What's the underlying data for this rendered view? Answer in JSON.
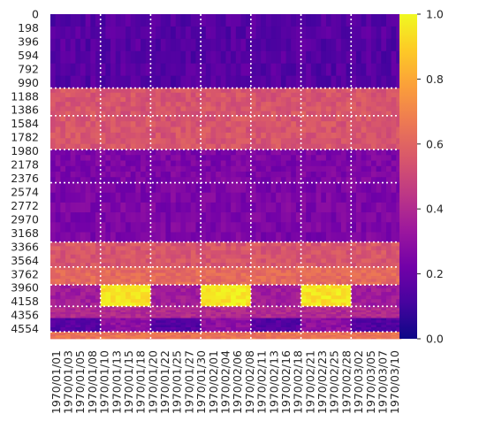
{
  "chart_data": {
    "type": "heatmap",
    "title": "",
    "xlabel": "",
    "ylabel": "",
    "x_tick_labels": [
      "1970/01/01",
      "1970/01/03",
      "1970/01/05",
      "1970/01/08",
      "1970/01/10",
      "1970/01/13",
      "1970/01/15",
      "1970/01/18",
      "1970/01/20",
      "1970/01/22",
      "1970/01/25",
      "1970/01/27",
      "1970/01/30",
      "1970/02/01",
      "1970/02/04",
      "1970/02/06",
      "1970/02/08",
      "1970/02/11",
      "1970/02/13",
      "1970/02/16",
      "1970/02/18",
      "1970/02/21",
      "1970/02/23",
      "1970/02/25",
      "1970/02/28",
      "1970/03/02",
      "1970/03/05",
      "1970/03/07",
      "1970/03/10"
    ],
    "y_tick_labels": [
      "0",
      "198",
      "396",
      "594",
      "792",
      "990",
      "1188",
      "1386",
      "1584",
      "1782",
      "1980",
      "2178",
      "2376",
      "2574",
      "2772",
      "2970",
      "3168",
      "3366",
      "3564",
      "3762",
      "3960",
      "4158",
      "4356",
      "4554"
    ],
    "y_range": [
      0,
      4700
    ],
    "num_x_columns": 70,
    "num_y_rows": 4700,
    "vertical_separator_columns": [
      10,
      20,
      30,
      40,
      50,
      60
    ],
    "horizontal_separator_rows": [
      1070,
      1470,
      1960,
      2440,
      3300,
      3660,
      3920,
      4230,
      4600
    ],
    "row_bands": [
      {
        "from": 0,
        "to": 1070,
        "value": 0.15
      },
      {
        "from": 1070,
        "to": 1470,
        "value": 0.55
      },
      {
        "from": 1470,
        "to": 1960,
        "value": 0.55
      },
      {
        "from": 1960,
        "to": 2440,
        "value": 0.25
      },
      {
        "from": 2440,
        "to": 3300,
        "value": 0.25
      },
      {
        "from": 3300,
        "to": 3660,
        "value": 0.55
      },
      {
        "from": 3660,
        "to": 3920,
        "value": 0.62
      },
      {
        "from": 3920,
        "to": 4230,
        "value": 0.95,
        "alternate_value": 0.35
      },
      {
        "from": 4230,
        "to": 4400,
        "value": 0.4
      },
      {
        "from": 4400,
        "to": 4600,
        "value": 0.3,
        "alternate_value": 0.15
      },
      {
        "from": 4600,
        "to": 4700,
        "value": 0.65
      }
    ],
    "colormap": "plasma",
    "color_stops": [
      "#0d0887",
      "#46039f",
      "#7201a8",
      "#9c179e",
      "#bd3786",
      "#d8576b",
      "#ed7953",
      "#fb9f3a",
      "#fdca26",
      "#f0f921"
    ],
    "colorbar": {
      "min": 0.0,
      "max": 1.0,
      "ticks": [
        "0.0",
        "0.2",
        "0.4",
        "0.6",
        "0.8",
        "1.0"
      ]
    },
    "grid": false,
    "legend": "colorbar-right"
  }
}
